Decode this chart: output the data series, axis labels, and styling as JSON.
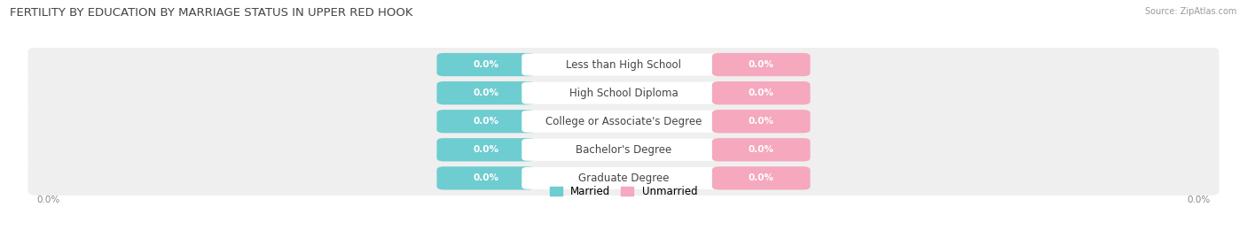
{
  "title": "FERTILITY BY EDUCATION BY MARRIAGE STATUS IN UPPER RED HOOK",
  "source": "Source: ZipAtlas.com",
  "categories": [
    "Less than High School",
    "High School Diploma",
    "College or Associate's Degree",
    "Bachelor's Degree",
    "Graduate Degree"
  ],
  "married_values": [
    0.0,
    0.0,
    0.0,
    0.0,
    0.0
  ],
  "unmarried_values": [
    0.0,
    0.0,
    0.0,
    0.0,
    0.0
  ],
  "married_color": "#6ecdd0",
  "unmarried_color": "#f5a8be",
  "row_bg_color": "#efefef",
  "title_fontsize": 9.5,
  "label_fontsize": 8.5,
  "value_fontsize": 7.5,
  "legend_married": "Married",
  "legend_unmarried": "Unmarried",
  "background_color": "#ffffff",
  "axis_label_color": "#888888",
  "text_color": "#444444"
}
